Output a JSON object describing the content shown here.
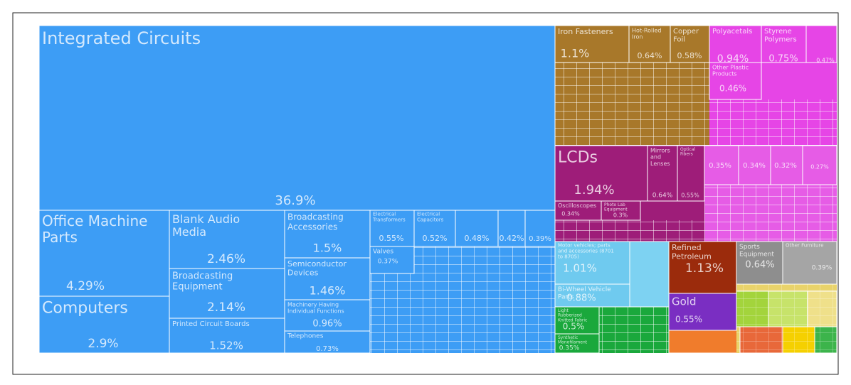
{
  "chart_data": {
    "type": "treemap",
    "labels": [
      "Integrated Circuits",
      "Office Machine Parts",
      "Computers",
      "Blank Audio Media",
      "Broadcasting Equipment",
      "Printed Circuit Boards",
      "Broadcasting Accessories",
      "Semiconductor Devices",
      "Machinery Having Individual Functions",
      "Telephones",
      "Electrical Transformers",
      "Electrical Capacitors",
      null,
      null,
      null,
      "Valves",
      "Iron Fasteners",
      "Hot-Rolled Iron",
      "Copper Foil",
      "Polyacetals",
      "Styrene Polymers",
      null,
      "Other Plastic Products",
      "LCDs",
      "Mirrors and Lenses",
      "Optical Fibers",
      "Oscilloscopes",
      "Photo Lab Equipment",
      null,
      null,
      null,
      null,
      "Motor vehicles; parts and accessories (8701 to 8705)",
      "Bi-Wheel Vehicle Parts",
      "Refined Petroleum",
      "Sports Equipment",
      "Other Furniture",
      "Gold",
      "Light Rubberized Knitted Fabric",
      "Synthetic Monofilament"
    ],
    "values": [
      36.9,
      4.29,
      2.9,
      2.46,
      2.14,
      1.52,
      1.5,
      1.46,
      0.96,
      0.73,
      0.55,
      0.52,
      0.48,
      0.42,
      0.39,
      0.37,
      1.1,
      0.64,
      0.58,
      0.94,
      0.75,
      0.47,
      0.46,
      1.94,
      0.64,
      0.55,
      0.34,
      0.3,
      0.35,
      0.34,
      0.32,
      0.27,
      1.01,
      0.88,
      1.13,
      0.64,
      0.39,
      0.55,
      0.5,
      0.35
    ],
    "value_labels": [
      "36.9%",
      "4.29%",
      "2.9%",
      "2.46%",
      "2.14%",
      "1.52%",
      "1.5%",
      "1.46%",
      "0.96%",
      "0.73%",
      "0.55%",
      "0.52%",
      "0.48%",
      "0.42%",
      "0.39%",
      "0.37%",
      "1.1%",
      "0.64%",
      "0.58%",
      "0.94%",
      "0.75%",
      "0.47%",
      "0.46%",
      "1.94%",
      "0.64%",
      "0.55%",
      "0.34%",
      "0.3%",
      "0.35%",
      "0.34%",
      "0.32%",
      "0.27%",
      "1.01%",
      "0.88%",
      "1.13%",
      "0.64%",
      "0.39%",
      "0.55%",
      "0.5%",
      "0.35%"
    ],
    "colors": [
      "#3d9df5",
      "#3d9df5",
      "#3d9df5",
      "#3d9df5",
      "#3d9df5",
      "#3d9df5",
      "#3d9df5",
      "#3d9df5",
      "#3d9df5",
      "#3d9df5",
      "#3d9df5",
      "#3d9df5",
      "#3d9df5",
      "#3d9df5",
      "#3d9df5",
      "#3d9df5",
      "#a8782a",
      "#a8782a",
      "#a8782a",
      "#e645e6",
      "#e645e6",
      "#e645e6",
      "#e645e6",
      "#9e1d79",
      "#9e1d79",
      "#9e1d79",
      "#9e1d79",
      "#9e1d79",
      "#e65ce6",
      "#e65ce6",
      "#e65ce6",
      "#e65ce6",
      "#6fcaef",
      "#6fcaef",
      "#9b2b0c",
      "#8e8e8e",
      "#a5a5a5",
      "#7a2ec2",
      "#1aa83c",
      "#1aa83c"
    ]
  }
}
